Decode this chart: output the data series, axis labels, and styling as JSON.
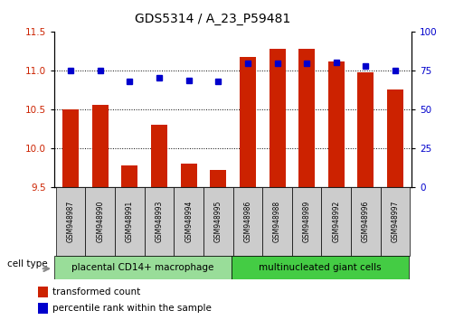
{
  "title": "GDS5314 / A_23_P59481",
  "samples": [
    "GSM948987",
    "GSM948990",
    "GSM948991",
    "GSM948993",
    "GSM948994",
    "GSM948995",
    "GSM948986",
    "GSM948988",
    "GSM948989",
    "GSM948992",
    "GSM948996",
    "GSM948997"
  ],
  "transformed_count": [
    10.5,
    10.56,
    9.78,
    10.3,
    9.8,
    9.72,
    11.18,
    11.28,
    11.28,
    11.12,
    10.98,
    10.76
  ],
  "percentile_rank": [
    75,
    75,
    68,
    70.5,
    68.5,
    68,
    80,
    80,
    80,
    80.5,
    78,
    75
  ],
  "group1_label": "placental CD14+ macrophage",
  "group2_label": "multinucleated giant cells",
  "group1_count": 6,
  "group2_count": 6,
  "ylim_left": [
    9.5,
    11.5
  ],
  "ylim_right": [
    0,
    100
  ],
  "yticks_left": [
    9.5,
    10.0,
    10.5,
    11.0,
    11.5
  ],
  "yticks_right": [
    0,
    25,
    50,
    75,
    100
  ],
  "bar_color": "#cc2200",
  "dot_color": "#0000cc",
  "grid_color": "#000000",
  "bg_color": "#ffffff",
  "plot_bg": "#ffffff",
  "label_bg": "#cccccc",
  "group1_bg": "#99dd99",
  "group2_bg": "#44cc44",
  "legend_red_label": "transformed count",
  "legend_blue_label": "percentile rank within the sample",
  "cell_type_label": "cell type",
  "title_fontsize": 10,
  "tick_fontsize": 7.5,
  "legend_fontsize": 7.5,
  "sample_fontsize": 5.5,
  "group_fontsize": 7.5
}
